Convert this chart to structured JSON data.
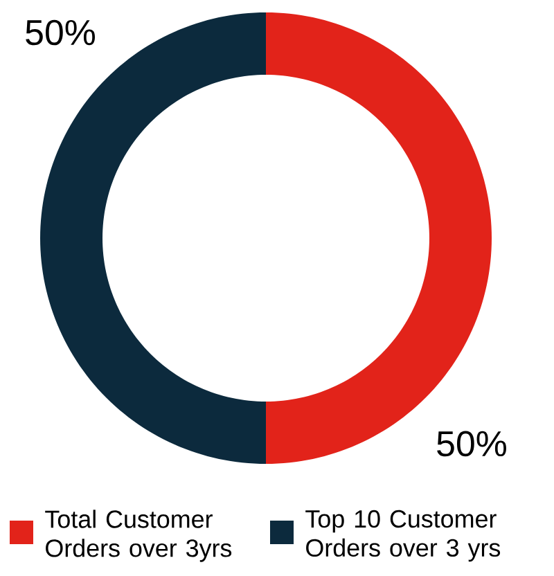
{
  "chart_data": {
    "type": "donut",
    "categories": [
      "Total Customer Orders over 3yrs",
      "Top 10 Customer Orders over 3 yrs"
    ],
    "values": [
      50,
      50
    ],
    "colors": [
      "#e2231a",
      "#0c2a3d"
    ],
    "value_labels": [
      "50%",
      "50%"
    ],
    "legend": "bottom"
  }
}
